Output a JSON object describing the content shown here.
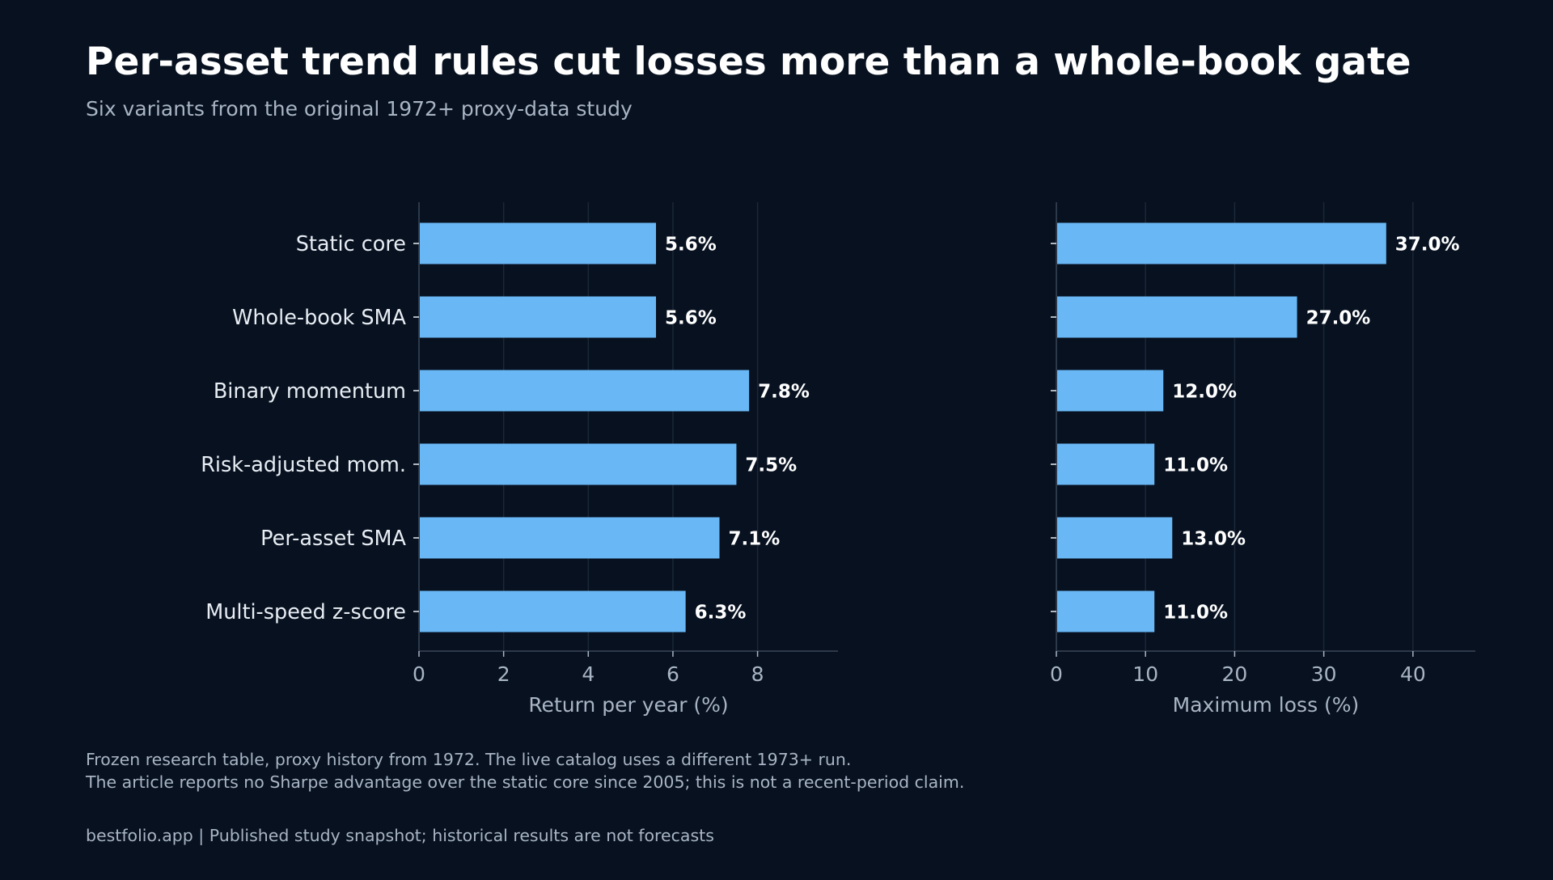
{
  "title": "Per-asset trend rules cut losses more than a whole-book gate",
  "subtitle": "Six variants from the original 1972+ proxy-data study",
  "notes": [
    "Frozen research table, proxy history from 1972. The live catalog uses a different 1973+ run.",
    "The article reports no Sharpe advantage over the static core since 2005; this is not a recent-period claim."
  ],
  "footer": "bestfolio.app  |  Published study snapshot; historical results are not forecasts",
  "colors": {
    "background": "#071120",
    "bar": "#69b8f5",
    "title_text": "#ffffff",
    "category_text": "#e8edf3",
    "muted_text": "#a9b5c4",
    "gridline": "#1c2737",
    "axis_line": "#3a4556",
    "value_label": "#ffffff"
  },
  "chart_data": [
    {
      "type": "bar",
      "orientation": "horizontal",
      "categories": [
        "Static core",
        "Whole-book SMA",
        "Binary momentum",
        "Risk-adjusted mom.",
        "Per-asset SMA",
        "Multi-speed z-score"
      ],
      "values": [
        5.6,
        5.6,
        7.8,
        7.5,
        7.1,
        6.3
      ],
      "value_labels": [
        "5.6%",
        "5.6%",
        "7.8%",
        "7.5%",
        "7.1%",
        "6.3%"
      ],
      "xlabel": "Return per year (%)",
      "xlim": [
        0,
        9.9
      ],
      "xticks": [
        0,
        2,
        4,
        6,
        8
      ],
      "grid": "vertical"
    },
    {
      "type": "bar",
      "orientation": "horizontal",
      "categories": [
        "Static core",
        "Whole-book SMA",
        "Binary momentum",
        "Risk-adjusted mom.",
        "Per-asset SMA",
        "Multi-speed z-score"
      ],
      "values": [
        37.0,
        27.0,
        12.0,
        11.0,
        13.0,
        11.0
      ],
      "value_labels": [
        "37.0%",
        "27.0%",
        "12.0%",
        "11.0%",
        "13.0%",
        "11.0%"
      ],
      "xlabel": "Maximum loss (%)",
      "xlim": [
        0,
        47
      ],
      "xticks": [
        0,
        10,
        20,
        30,
        40
      ],
      "grid": "vertical"
    }
  ]
}
